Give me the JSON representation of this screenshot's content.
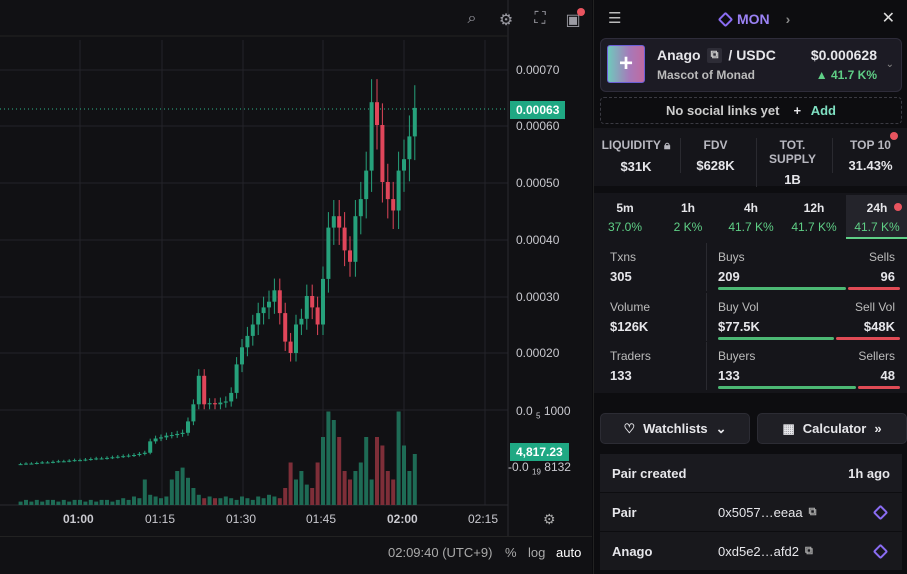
{
  "toolbar": {
    "icons": [
      "indicator-search-icon",
      "settings-icon",
      "fullscreen-icon",
      "camera-icon"
    ]
  },
  "price_axis": {
    "labels": [
      "0.00070",
      "0.00060",
      "0.00050",
      "0.00040",
      "0.00030",
      "0.00020"
    ],
    "small1": "0.0",
    "small1_sub": "5",
    "small1_tail": "1000",
    "small2": "-0.0",
    "small2_sub": "19",
    "small2_tail": "8132",
    "last_price": "0.00063",
    "last_volume": "4,817.23"
  },
  "time_axis": [
    "01:00",
    "01:15",
    "01:30",
    "01:45",
    "02:00",
    "02:15"
  ],
  "bottom": {
    "clock": "02:09:40 (UTC+9)",
    "percent": "%",
    "log": "log",
    "auto": "auto"
  },
  "chart_data": {
    "type": "candlestick",
    "start_minute": 49,
    "interval_min": 1,
    "closes": [
      5,
      6,
      6,
      7,
      8,
      8,
      9,
      10,
      10,
      11,
      12,
      12,
      13,
      14,
      15,
      15,
      16,
      17,
      18,
      19,
      20,
      21,
      23,
      25,
      45,
      50,
      52,
      55,
      56,
      58,
      60,
      80,
      110,
      160,
      110,
      112,
      110,
      113,
      115,
      130,
      180,
      210,
      230,
      250,
      270,
      280,
      290,
      310,
      270,
      220,
      200,
      250,
      260,
      300,
      280,
      250,
      330,
      420,
      440,
      420,
      380,
      360,
      440,
      470,
      520,
      640,
      600,
      500,
      470,
      450,
      520,
      540,
      580,
      630
    ],
    "volumes": [
      2,
      3,
      2,
      3,
      2,
      3,
      3,
      2,
      3,
      2,
      3,
      3,
      2,
      3,
      2,
      3,
      3,
      2,
      3,
      4,
      3,
      5,
      4,
      15,
      6,
      5,
      4,
      5,
      15,
      20,
      22,
      16,
      10,
      6,
      4,
      5,
      4,
      4,
      5,
      4,
      3,
      5,
      4,
      3,
      5,
      4,
      6,
      5,
      4,
      10,
      25,
      15,
      20,
      12,
      10,
      25,
      40,
      55,
      50,
      40,
      20,
      15,
      20,
      25,
      40,
      15,
      40,
      35,
      20,
      15,
      55,
      35,
      20,
      30
    ]
  },
  "header": {
    "chain": "MON"
  },
  "token": {
    "name": "Anago",
    "quote": "/ USDC",
    "desc": "Mascot of Monad",
    "price": "$0.000628",
    "change": "▲ 41.7 K%"
  },
  "social": {
    "text": "No social links yet",
    "add": "Add"
  },
  "stats": [
    {
      "label": "LIQUIDITY",
      "value": "$31K"
    },
    {
      "label": "FDV",
      "value": "$628K"
    },
    {
      "label": "TOT. SUPPLY",
      "value": "1B"
    },
    {
      "label": "TOP 10",
      "value": "31.43%"
    }
  ],
  "timeframes": [
    {
      "label": "5m",
      "pct": "37.0%"
    },
    {
      "label": "1h",
      "pct": "2 K%"
    },
    {
      "label": "4h",
      "pct": "41.7 K%"
    },
    {
      "label": "12h",
      "pct": "41.7 K%"
    },
    {
      "label": "24h",
      "pct": "41.7 K%"
    }
  ],
  "txstats": [
    {
      "l": "Txns",
      "v": "305",
      "bl": "Buys",
      "bv": "209",
      "sl": "Sells",
      "sv": "96",
      "buy_frac": 0.685
    },
    {
      "l": "Volume",
      "v": "$126K",
      "bl": "Buy Vol",
      "bv": "$77.5K",
      "sl": "Sell Vol",
      "sv": "$48K",
      "buy_frac": 0.62
    },
    {
      "l": "Traders",
      "v": "133",
      "bl": "Buyers",
      "bv": "133",
      "sl": "Sellers",
      "sv": "48",
      "buy_frac": 0.735
    }
  ],
  "buttons": {
    "watchlists": "Watchlists",
    "calculator": "Calculator"
  },
  "info": {
    "pair_created": "Pair created",
    "pair_created_v": "1h ago",
    "pair": "Pair",
    "pair_addr": "0x5057…eeaa",
    "token": "Anago",
    "token_addr": "0xd5e2…afd2"
  },
  "colors": {
    "up": "#2db38a",
    "down": "#f0475a",
    "accent": "#8a6cf2"
  }
}
